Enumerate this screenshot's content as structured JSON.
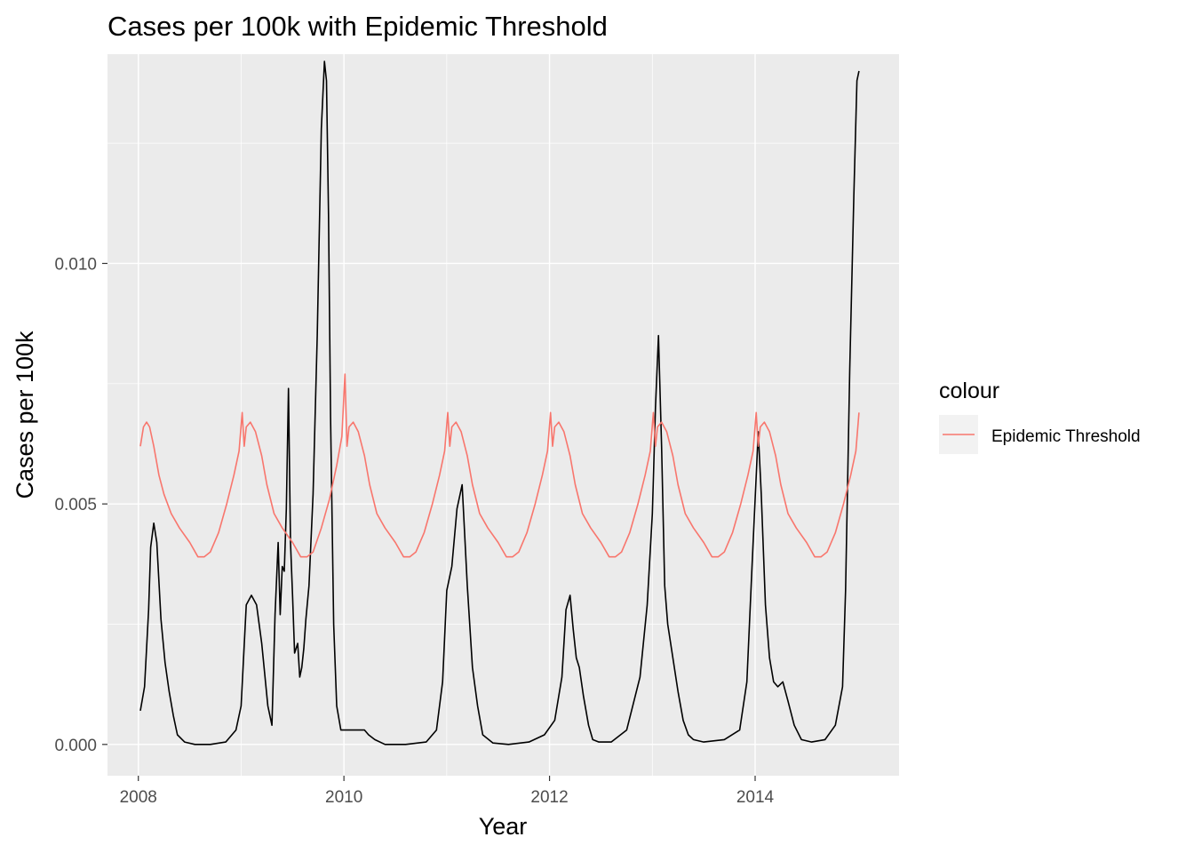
{
  "chart_data": {
    "type": "line",
    "title": "Cases per 100k with Epidemic Threshold",
    "xlabel": "Year",
    "ylabel": "Cases per 100k",
    "xlim": [
      2007.7,
      2015.4
    ],
    "ylim": [
      -0.00065,
      0.01435
    ],
    "x_ticks": [
      2008,
      2010,
      2012,
      2014
    ],
    "x_tick_labels": [
      "2008",
      "2010",
      "2012",
      "2014"
    ],
    "y_ticks": [
      0.0,
      0.005,
      0.01
    ],
    "y_tick_labels": [
      "0.000",
      "0.005",
      "0.010"
    ],
    "grid": true,
    "legend": {
      "title": "colour",
      "position": "right",
      "entries": [
        {
          "label": "Epidemic Threshold",
          "color": "#F8766D"
        }
      ]
    },
    "series": [
      {
        "color": "#000000",
        "x": [
          2008.02,
          2008.06,
          2008.1,
          2008.12,
          2008.15,
          2008.18,
          2008.22,
          2008.26,
          2008.3,
          2008.34,
          2008.38,
          2008.45,
          2008.55,
          2008.7,
          2008.85,
          2008.95,
          2009.0,
          2009.05,
          2009.1,
          2009.15,
          2009.2,
          2009.26,
          2009.3,
          2009.33,
          2009.36,
          2009.38,
          2009.4,
          2009.42,
          2009.44,
          2009.46,
          2009.48,
          2009.5,
          2009.52,
          2009.55,
          2009.57,
          2009.59,
          2009.61,
          2009.63,
          2009.66,
          2009.7,
          2009.74,
          2009.78,
          2009.81,
          2009.83,
          2009.85,
          2009.87,
          2009.9,
          2009.93,
          2009.97,
          2010.0,
          2010.1,
          2010.2,
          2010.24,
          2010.3,
          2010.4,
          2010.6,
          2010.8,
          2010.9,
          2010.96,
          2011.0,
          2011.05,
          2011.1,
          2011.15,
          2011.2,
          2011.25,
          2011.3,
          2011.35,
          2011.45,
          2011.6,
          2011.8,
          2011.95,
          2012.05,
          2012.12,
          2012.16,
          2012.2,
          2012.23,
          2012.26,
          2012.29,
          2012.33,
          2012.38,
          2012.42,
          2012.48,
          2012.6,
          2012.75,
          2012.88,
          2012.95,
          2013.0,
          2013.03,
          2013.06,
          2013.09,
          2013.12,
          2013.15,
          2013.2,
          2013.25,
          2013.3,
          2013.35,
          2013.4,
          2013.5,
          2013.7,
          2013.85,
          2013.92,
          2013.97,
          2014.03,
          2014.06,
          2014.1,
          2014.14,
          2014.18,
          2014.22,
          2014.27,
          2014.32,
          2014.38,
          2014.45,
          2014.55,
          2014.68,
          2014.78,
          2014.85,
          2014.88,
          2014.92,
          2014.96,
          2014.99,
          2015.01
        ],
        "y": [
          0.0007,
          0.0012,
          0.0028,
          0.0041,
          0.0046,
          0.0042,
          0.0026,
          0.0017,
          0.0011,
          0.0006,
          0.0002,
          5e-05,
          0.0,
          0.0,
          5e-05,
          0.0003,
          0.0008,
          0.0029,
          0.0031,
          0.0029,
          0.0021,
          0.0008,
          0.0004,
          0.0027,
          0.0042,
          0.0027,
          0.0037,
          0.0036,
          0.0049,
          0.0074,
          0.0042,
          0.0031,
          0.0019,
          0.0021,
          0.0014,
          0.0016,
          0.002,
          0.0026,
          0.0033,
          0.0052,
          0.0085,
          0.0128,
          0.0142,
          0.0138,
          0.011,
          0.0068,
          0.0025,
          0.0008,
          0.0003,
          0.0003,
          0.0003,
          0.0003,
          0.0002,
          0.0001,
          0.0,
          0.0,
          5e-05,
          0.0003,
          0.0013,
          0.0032,
          0.0037,
          0.0049,
          0.0054,
          0.0033,
          0.0016,
          0.0008,
          0.0002,
          3e-05,
          0.0,
          5e-05,
          0.0002,
          0.0005,
          0.0014,
          0.0028,
          0.0031,
          0.0024,
          0.0018,
          0.0016,
          0.001,
          0.0004,
          0.0001,
          5e-05,
          5e-05,
          0.0003,
          0.0014,
          0.0029,
          0.0048,
          0.007,
          0.0085,
          0.0062,
          0.0033,
          0.0025,
          0.0018,
          0.0011,
          0.0005,
          0.0002,
          0.0001,
          5e-05,
          0.0001,
          0.0003,
          0.0013,
          0.0037,
          0.0065,
          0.0052,
          0.0029,
          0.0018,
          0.0013,
          0.0012,
          0.0013,
          0.0009,
          0.0004,
          0.0001,
          5e-05,
          0.0001,
          0.0004,
          0.0012,
          0.0032,
          0.0078,
          0.0114,
          0.0138,
          0.014
        ]
      },
      {
        "name": "Epidemic Threshold",
        "color": "#F8766D",
        "x": [
          2008.02,
          2008.05,
          2008.08,
          2008.11,
          2008.15,
          2008.2,
          2008.25,
          2008.32,
          2008.4,
          2008.5,
          2008.58,
          2008.64,
          2008.7,
          2008.78,
          2008.86,
          2008.93,
          2008.98,
          2009.01,
          2009.03,
          2009.05,
          2009.09,
          2009.14,
          2009.2,
          2009.25,
          2009.32,
          2009.4,
          2009.5,
          2009.58,
          2009.64,
          2009.7,
          2009.78,
          2009.86,
          2009.93,
          2009.98,
          2010.01,
          2010.03,
          2010.05,
          2010.09,
          2010.14,
          2010.2,
          2010.25,
          2010.32,
          2010.4,
          2010.5,
          2010.58,
          2010.64,
          2010.7,
          2010.78,
          2010.86,
          2010.93,
          2010.98,
          2011.01,
          2011.03,
          2011.05,
          2011.09,
          2011.14,
          2011.2,
          2011.25,
          2011.32,
          2011.4,
          2011.5,
          2011.58,
          2011.64,
          2011.7,
          2011.78,
          2011.86,
          2011.93,
          2011.98,
          2012.01,
          2012.03,
          2012.05,
          2012.09,
          2012.14,
          2012.2,
          2012.25,
          2012.32,
          2012.4,
          2012.5,
          2012.58,
          2012.64,
          2012.7,
          2012.78,
          2012.86,
          2012.93,
          2012.98,
          2013.01,
          2013.03,
          2013.05,
          2013.09,
          2013.14,
          2013.2,
          2013.25,
          2013.32,
          2013.4,
          2013.5,
          2013.58,
          2013.64,
          2013.7,
          2013.78,
          2013.86,
          2013.93,
          2013.98,
          2014.01,
          2014.03,
          2014.05,
          2014.09,
          2014.14,
          2014.2,
          2014.25,
          2014.32,
          2014.4,
          2014.5,
          2014.58,
          2014.64,
          2014.7,
          2014.78,
          2014.86,
          2014.93,
          2014.98,
          2015.01
        ],
        "y": [
          0.0062,
          0.0066,
          0.0067,
          0.0066,
          0.0062,
          0.0056,
          0.0052,
          0.0048,
          0.0045,
          0.0042,
          0.0039,
          0.0039,
          0.004,
          0.0044,
          0.005,
          0.0056,
          0.0061,
          0.0069,
          0.0062,
          0.0066,
          0.0067,
          0.0065,
          0.006,
          0.0054,
          0.0048,
          0.0045,
          0.0042,
          0.0039,
          0.0039,
          0.004,
          0.0045,
          0.0051,
          0.0058,
          0.0064,
          0.0077,
          0.0062,
          0.0066,
          0.0067,
          0.0065,
          0.006,
          0.0054,
          0.0048,
          0.0045,
          0.0042,
          0.0039,
          0.0039,
          0.004,
          0.0044,
          0.005,
          0.0056,
          0.0061,
          0.0069,
          0.0062,
          0.0066,
          0.0067,
          0.0065,
          0.006,
          0.0054,
          0.0048,
          0.0045,
          0.0042,
          0.0039,
          0.0039,
          0.004,
          0.0044,
          0.005,
          0.0056,
          0.0061,
          0.0069,
          0.0062,
          0.0066,
          0.0067,
          0.0065,
          0.006,
          0.0054,
          0.0048,
          0.0045,
          0.0042,
          0.0039,
          0.0039,
          0.004,
          0.0044,
          0.005,
          0.0056,
          0.0061,
          0.0069,
          0.0062,
          0.0066,
          0.0067,
          0.0065,
          0.006,
          0.0054,
          0.0048,
          0.0045,
          0.0042,
          0.0039,
          0.0039,
          0.004,
          0.0044,
          0.005,
          0.0056,
          0.0061,
          0.0069,
          0.0062,
          0.0066,
          0.0067,
          0.0065,
          0.006,
          0.0054,
          0.0048,
          0.0045,
          0.0042,
          0.0039,
          0.0039,
          0.004,
          0.0044,
          0.005,
          0.0056,
          0.0061,
          0.0069
        ]
      }
    ]
  }
}
